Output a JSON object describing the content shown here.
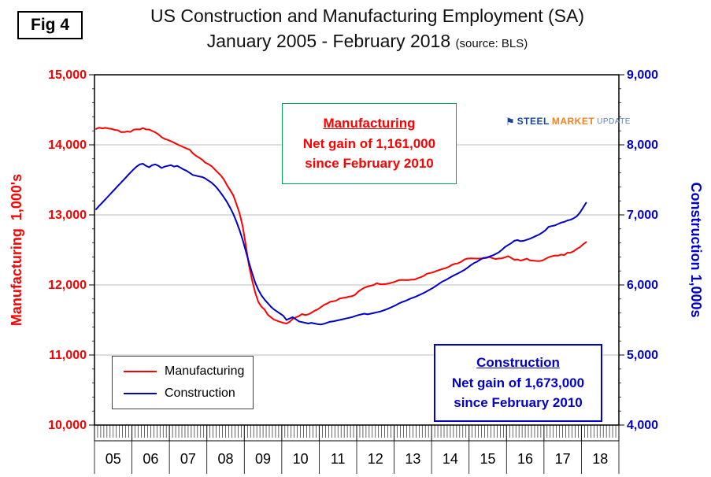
{
  "figure": {
    "label": "Fig 4"
  },
  "title": {
    "line1": "US Construction and Manufacturing Employment (SA)",
    "line2": "January 2005 - February 2018",
    "source": "(source: BLS)"
  },
  "logo": {
    "flag": "⚑",
    "part1": "STEEL",
    "part2": "MARKET",
    "part3": "UPDATE"
  },
  "legend": {
    "items": [
      {
        "label": "Manufacturing",
        "color": "#FF0000"
      },
      {
        "label": "Construction",
        "color": "#0000CD"
      }
    ]
  },
  "annotations": {
    "manufacturing": {
      "title": "Manufacturing",
      "line1": "Net gain of 1,161,000",
      "line2": "since February 2010",
      "text_color": "#FF0000",
      "border_color": "#00A651"
    },
    "construction": {
      "title": "Construction",
      "line1": "Net gain of 1,673,000",
      "line2": "since February 2010",
      "text_color": "#0000CC",
      "border_color": "#0000CC"
    }
  },
  "chart_data": {
    "type": "line",
    "title": "US Construction and Manufacturing Employment (SA) January 2005 - February 2018",
    "x_start": "2005-01",
    "x_end": "2018-02",
    "grid": "horizontal",
    "legend_position": "inside-bottom-left",
    "x_axis": {
      "years": [
        "05",
        "06",
        "07",
        "08",
        "09",
        "10",
        "11",
        "12",
        "13",
        "14",
        "15",
        "16",
        "17",
        "18"
      ]
    },
    "left_axis": {
      "label": "Manufacturing  1,000's",
      "min": 10000,
      "max": 15000,
      "ticks": [
        "15,000",
        "14,000",
        "13,000",
        "12,000",
        "11,000",
        "10,000"
      ],
      "color": "#FF0000"
    },
    "right_axis": {
      "label": "Construction 1,000s",
      "min": 4000,
      "max": 9000,
      "ticks": [
        "9,000",
        "8,000",
        "7,000",
        "6,000",
        "5,000",
        "4,000"
      ],
      "color": "#0000CD"
    },
    "series": [
      {
        "name": "Manufacturing",
        "axis": "left",
        "color": "#FF0000",
        "values": [
          14227,
          14245,
          14235,
          14243,
          14234,
          14227,
          14213,
          14208,
          14181,
          14182,
          14191,
          14184,
          14216,
          14222,
          14219,
          14239,
          14220,
          14219,
          14198,
          14177,
          14148,
          14109,
          14084,
          14070,
          14052,
          14030,
          14008,
          13988,
          13966,
          13947,
          13930,
          13880,
          13844,
          13818,
          13788,
          13746,
          13725,
          13696,
          13651,
          13606,
          13561,
          13502,
          13420,
          13352,
          13278,
          13149,
          13021,
          12833,
          12558,
          12277,
          12067,
          11889,
          11757,
          11689,
          11647,
          11576,
          11539,
          11506,
          11489,
          11472,
          11458,
          11450,
          11473,
          11513,
          11537,
          11555,
          11584,
          11570,
          11580,
          11602,
          11631,
          11650,
          11682,
          11715,
          11734,
          11760,
          11766,
          11778,
          11804,
          11815,
          11820,
          11833,
          11839,
          11859,
          11905,
          11935,
          11962,
          11977,
          11989,
          12001,
          12025,
          12010,
          12010,
          12016,
          12022,
          12036,
          12050,
          12069,
          12072,
          12070,
          12068,
          12075,
          12075,
          12094,
          12110,
          12129,
          12160,
          12171,
          12180,
          12199,
          12214,
          12228,
          12240,
          12258,
          12286,
          12301,
          12309,
          12331,
          12363,
          12376,
          12379,
          12377,
          12376,
          12378,
          12380,
          12384,
          12399,
          12383,
          12370,
          12378,
          12380,
          12393,
          12411,
          12386,
          12360,
          12364,
          12347,
          12360,
          12375,
          12352,
          12347,
          12343,
          12339,
          12350,
          12372,
          12395,
          12409,
          12420,
          12418,
          12434,
          12425,
          12459,
          12461,
          12481,
          12513,
          12538,
          12577,
          12611
        ]
      },
      {
        "name": "Construction",
        "axis": "right",
        "color": "#0000CD",
        "values": [
          7080,
          7128,
          7175,
          7223,
          7270,
          7318,
          7365,
          7413,
          7460,
          7508,
          7555,
          7603,
          7650,
          7690,
          7720,
          7730,
          7700,
          7680,
          7710,
          7720,
          7700,
          7670,
          7690,
          7700,
          7710,
          7690,
          7700,
          7675,
          7650,
          7630,
          7600,
          7570,
          7560,
          7550,
          7540,
          7520,
          7490,
          7460,
          7420,
          7370,
          7310,
          7250,
          7180,
          7100,
          7010,
          6900,
          6780,
          6640,
          6480,
          6320,
          6170,
          6030,
          5930,
          5850,
          5790,
          5740,
          5690,
          5650,
          5620,
          5590,
          5560,
          5500,
          5520,
          5540,
          5510,
          5480,
          5470,
          5460,
          5450,
          5460,
          5450,
          5440,
          5435,
          5445,
          5460,
          5475,
          5480,
          5490,
          5500,
          5510,
          5520,
          5530,
          5540,
          5555,
          5570,
          5580,
          5590,
          5580,
          5590,
          5600,
          5610,
          5620,
          5635,
          5650,
          5670,
          5690,
          5710,
          5735,
          5755,
          5770,
          5790,
          5810,
          5825,
          5845,
          5865,
          5885,
          5910,
          5935,
          5960,
          5990,
          6020,
          6050,
          6070,
          6095,
          6120,
          6145,
          6165,
          6190,
          6215,
          6245,
          6280,
          6310,
          6330,
          6360,
          6385,
          6390,
          6405,
          6420,
          6440,
          6465,
          6500,
          6540,
          6570,
          6595,
          6630,
          6640,
          6625,
          6630,
          6645,
          6660,
          6680,
          6700,
          6720,
          6750,
          6780,
          6830,
          6840,
          6850,
          6870,
          6890,
          6900,
          6920,
          6930,
          6950,
          6980,
          7030,
          7100,
          7173
        ]
      }
    ]
  }
}
